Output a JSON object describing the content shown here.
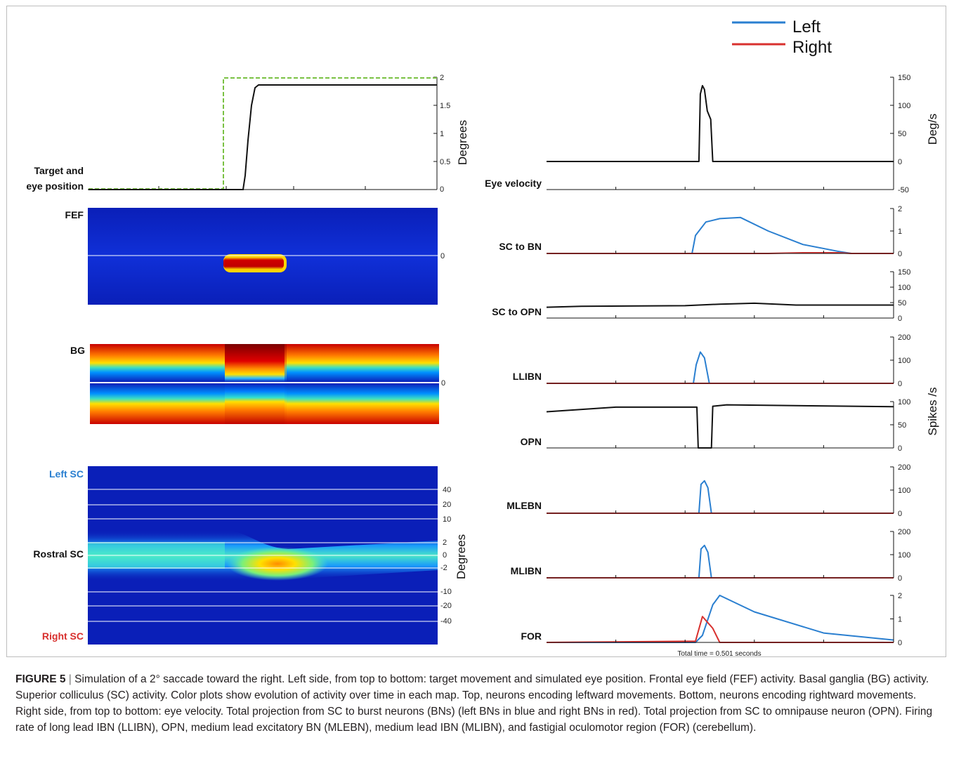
{
  "legend": [
    {
      "name": "Left",
      "color": "#2a7fd0"
    },
    {
      "name": "Right",
      "color": "#d8302e"
    }
  ],
  "left_panels": {
    "target_eye": {
      "label_lines": [
        "Target and",
        "eye position"
      ],
      "ylabel": "Degrees",
      "ticks": [
        "2",
        "1.5",
        "1",
        "0.5",
        "0"
      ],
      "target_color": "#7ac143"
    },
    "fef": {
      "label": "FEF",
      "ticks": [
        "0"
      ]
    },
    "bg": {
      "label": "BG",
      "ticks": [
        "0"
      ]
    },
    "sc": {
      "top_label": "Left SC",
      "mid_label": "Rostral SC",
      "bottom_label": "Right SC",
      "ylabel": "Degrees",
      "ticks": [
        "40",
        "20",
        "10",
        "2",
        "0",
        "-2",
        "-10",
        "-20",
        "-40"
      ],
      "top_label_color": "#2a7fd0",
      "bottom_label_color": "#d8302e"
    }
  },
  "right_panels": {
    "eye_velocity": {
      "label": "Eye velocity",
      "ylabel": "Deg/s",
      "ticks": [
        "150",
        "100",
        "50",
        "0",
        "-50"
      ]
    },
    "sc_to_bn": {
      "label": "SC to BN",
      "ticks": [
        "2",
        "1",
        "0"
      ]
    },
    "sc_to_opn": {
      "label": "SC to OPN",
      "ticks": [
        "150",
        "100",
        "50",
        "0"
      ]
    },
    "llibn": {
      "label": "LLIBN",
      "ticks": [
        "200",
        "100",
        "0"
      ]
    },
    "opn": {
      "label": "OPN",
      "ticks": [
        "100",
        "50",
        "0"
      ]
    },
    "mlebn": {
      "label": "MLEBN",
      "ticks": [
        "200",
        "100",
        "0"
      ]
    },
    "mlibn": {
      "label": "MLIBN",
      "ticks": [
        "200",
        "100",
        "0"
      ]
    },
    "for": {
      "label": "FOR",
      "ticks": [
        "2",
        "1",
        "0"
      ]
    },
    "spikes_ylabel": "Spikes /s",
    "total_time": "Total time = 0.501 seconds"
  },
  "caption": {
    "figure_label": "FIGURE 5",
    "separator": "|",
    "text": "Simulation of a 2° saccade toward the right. Left side, from top to bottom: target movement and simulated eye position. Frontal eye field (FEF) activity. Basal ganglia (BG) activity. Superior colliculus (SC) activity. Color plots show evolution of activity over time in each map. Top, neurons encoding leftward movements. Bottom, neurons encoding rightward movements. Right side, from top to bottom: eye velocity. Total projection from SC to burst neurons (BNs) (left BNs in blue and right BNs in red). Total projection from SC to omnipause neuron (OPN). Firing rate of long lead IBN (LLIBN), OPN, medium lead excitatory BN (MLEBN), medium lead IBN (MLIBN), and fastigial oculomotor region (FOR) (cerebellum)."
  },
  "chart_data": [
    {
      "type": "line",
      "title": "Target and eye position",
      "ylabel": "Degrees",
      "ylim": [
        0,
        2
      ],
      "x": [
        0,
        0.19,
        0.191,
        0.22,
        0.23,
        0.245,
        0.501
      ],
      "series": [
        {
          "name": "Target",
          "values": [
            0,
            0,
            2,
            2,
            2,
            2,
            2
          ]
        },
        {
          "name": "Eye",
          "values": [
            0,
            0,
            0,
            0,
            1.2,
            1.85,
            1.85
          ]
        }
      ]
    },
    {
      "type": "line",
      "title": "Eye velocity",
      "ylabel": "Deg/s",
      "ylim": [
        -50,
        150
      ],
      "x": [
        0,
        0.22,
        0.222,
        0.225,
        0.228,
        0.232,
        0.237,
        0.24,
        0.501
      ],
      "series": [
        {
          "name": "Eye velocity",
          "values": [
            0,
            0,
            120,
            135,
            128,
            90,
            75,
            0,
            0
          ]
        }
      ]
    },
    {
      "type": "line",
      "title": "SC to BN",
      "ylim": [
        0,
        2
      ],
      "x": [
        0,
        0.21,
        0.215,
        0.23,
        0.25,
        0.28,
        0.32,
        0.37,
        0.42,
        0.44,
        0.501
      ],
      "series": [
        {
          "name": "Left",
          "values": [
            0,
            0,
            0.8,
            1.4,
            1.55,
            1.6,
            1.0,
            0.4,
            0.1,
            0,
            0
          ]
        },
        {
          "name": "Right",
          "values": [
            0,
            0,
            0,
            0,
            0,
            0,
            0,
            0.03,
            0.03,
            0,
            0
          ]
        }
      ]
    },
    {
      "type": "line",
      "title": "SC to OPN",
      "ylim": [
        0,
        150
      ],
      "x": [
        0,
        0.05,
        0.2,
        0.25,
        0.3,
        0.36,
        0.501
      ],
      "series": [
        {
          "name": "SC to OPN",
          "values": [
            35,
            38,
            40,
            45,
            48,
            42,
            42
          ]
        }
      ]
    },
    {
      "type": "line",
      "title": "LLIBN",
      "ylim": [
        0,
        200
      ],
      "x": [
        0,
        0.212,
        0.216,
        0.222,
        0.228,
        0.235,
        0.501
      ],
      "series": [
        {
          "name": "Left",
          "values": [
            0,
            0,
            80,
            135,
            110,
            0,
            0
          ]
        },
        {
          "name": "Right",
          "values": [
            0,
            0,
            0,
            0,
            0,
            0,
            0
          ]
        }
      ]
    },
    {
      "type": "line",
      "title": "OPN",
      "ylim": [
        0,
        100
      ],
      "x": [
        0,
        0.1,
        0.217,
        0.219,
        0.238,
        0.24,
        0.26,
        0.501
      ],
      "series": [
        {
          "name": "OPN",
          "values": [
            78,
            88,
            88,
            0,
            0,
            90,
            93,
            89
          ]
        }
      ]
    },
    {
      "type": "line",
      "title": "MLEBN",
      "ylim": [
        0,
        200
      ],
      "x": [
        0,
        0.22,
        0.223,
        0.228,
        0.233,
        0.238,
        0.501
      ],
      "series": [
        {
          "name": "Left",
          "values": [
            0,
            0,
            125,
            140,
            110,
            0,
            0
          ]
        },
        {
          "name": "Right",
          "values": [
            0,
            0,
            0,
            0,
            0,
            0,
            0
          ]
        }
      ]
    },
    {
      "type": "line",
      "title": "MLIBN",
      "ylim": [
        0,
        200
      ],
      "x": [
        0,
        0.22,
        0.223,
        0.228,
        0.233,
        0.238,
        0.501
      ],
      "series": [
        {
          "name": "Left",
          "values": [
            0,
            0,
            125,
            140,
            110,
            0,
            0
          ]
        },
        {
          "name": "Right",
          "values": [
            0,
            0,
            0,
            0,
            0,
            0,
            0
          ]
        }
      ]
    },
    {
      "type": "line",
      "title": "FOR",
      "ylim": [
        0,
        2
      ],
      "x": [
        0,
        0.215,
        0.225,
        0.24,
        0.25,
        0.3,
        0.4,
        0.501
      ],
      "series": [
        {
          "name": "Left",
          "values": [
            0,
            0,
            0.3,
            1.6,
            2.0,
            1.3,
            0.4,
            0.1
          ]
        },
        {
          "name": "Right",
          "values": [
            0,
            0.05,
            1.1,
            0.6,
            0,
            0,
            0,
            0
          ]
        }
      ]
    }
  ]
}
